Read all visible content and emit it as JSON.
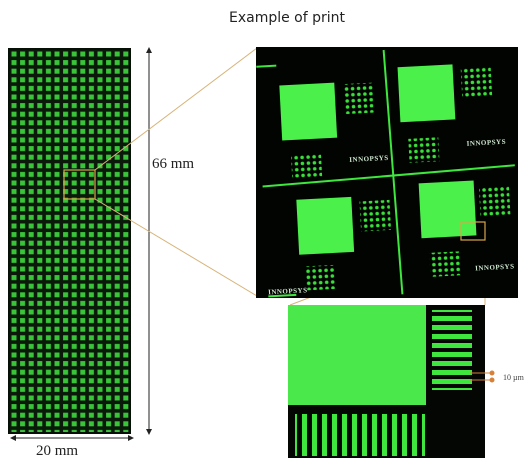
{
  "title": "Example of print",
  "scale_labels": {
    "height": "66 mm",
    "width": "20 mm",
    "feature": "10 µm"
  },
  "watermark": "INNOPSYS"
}
